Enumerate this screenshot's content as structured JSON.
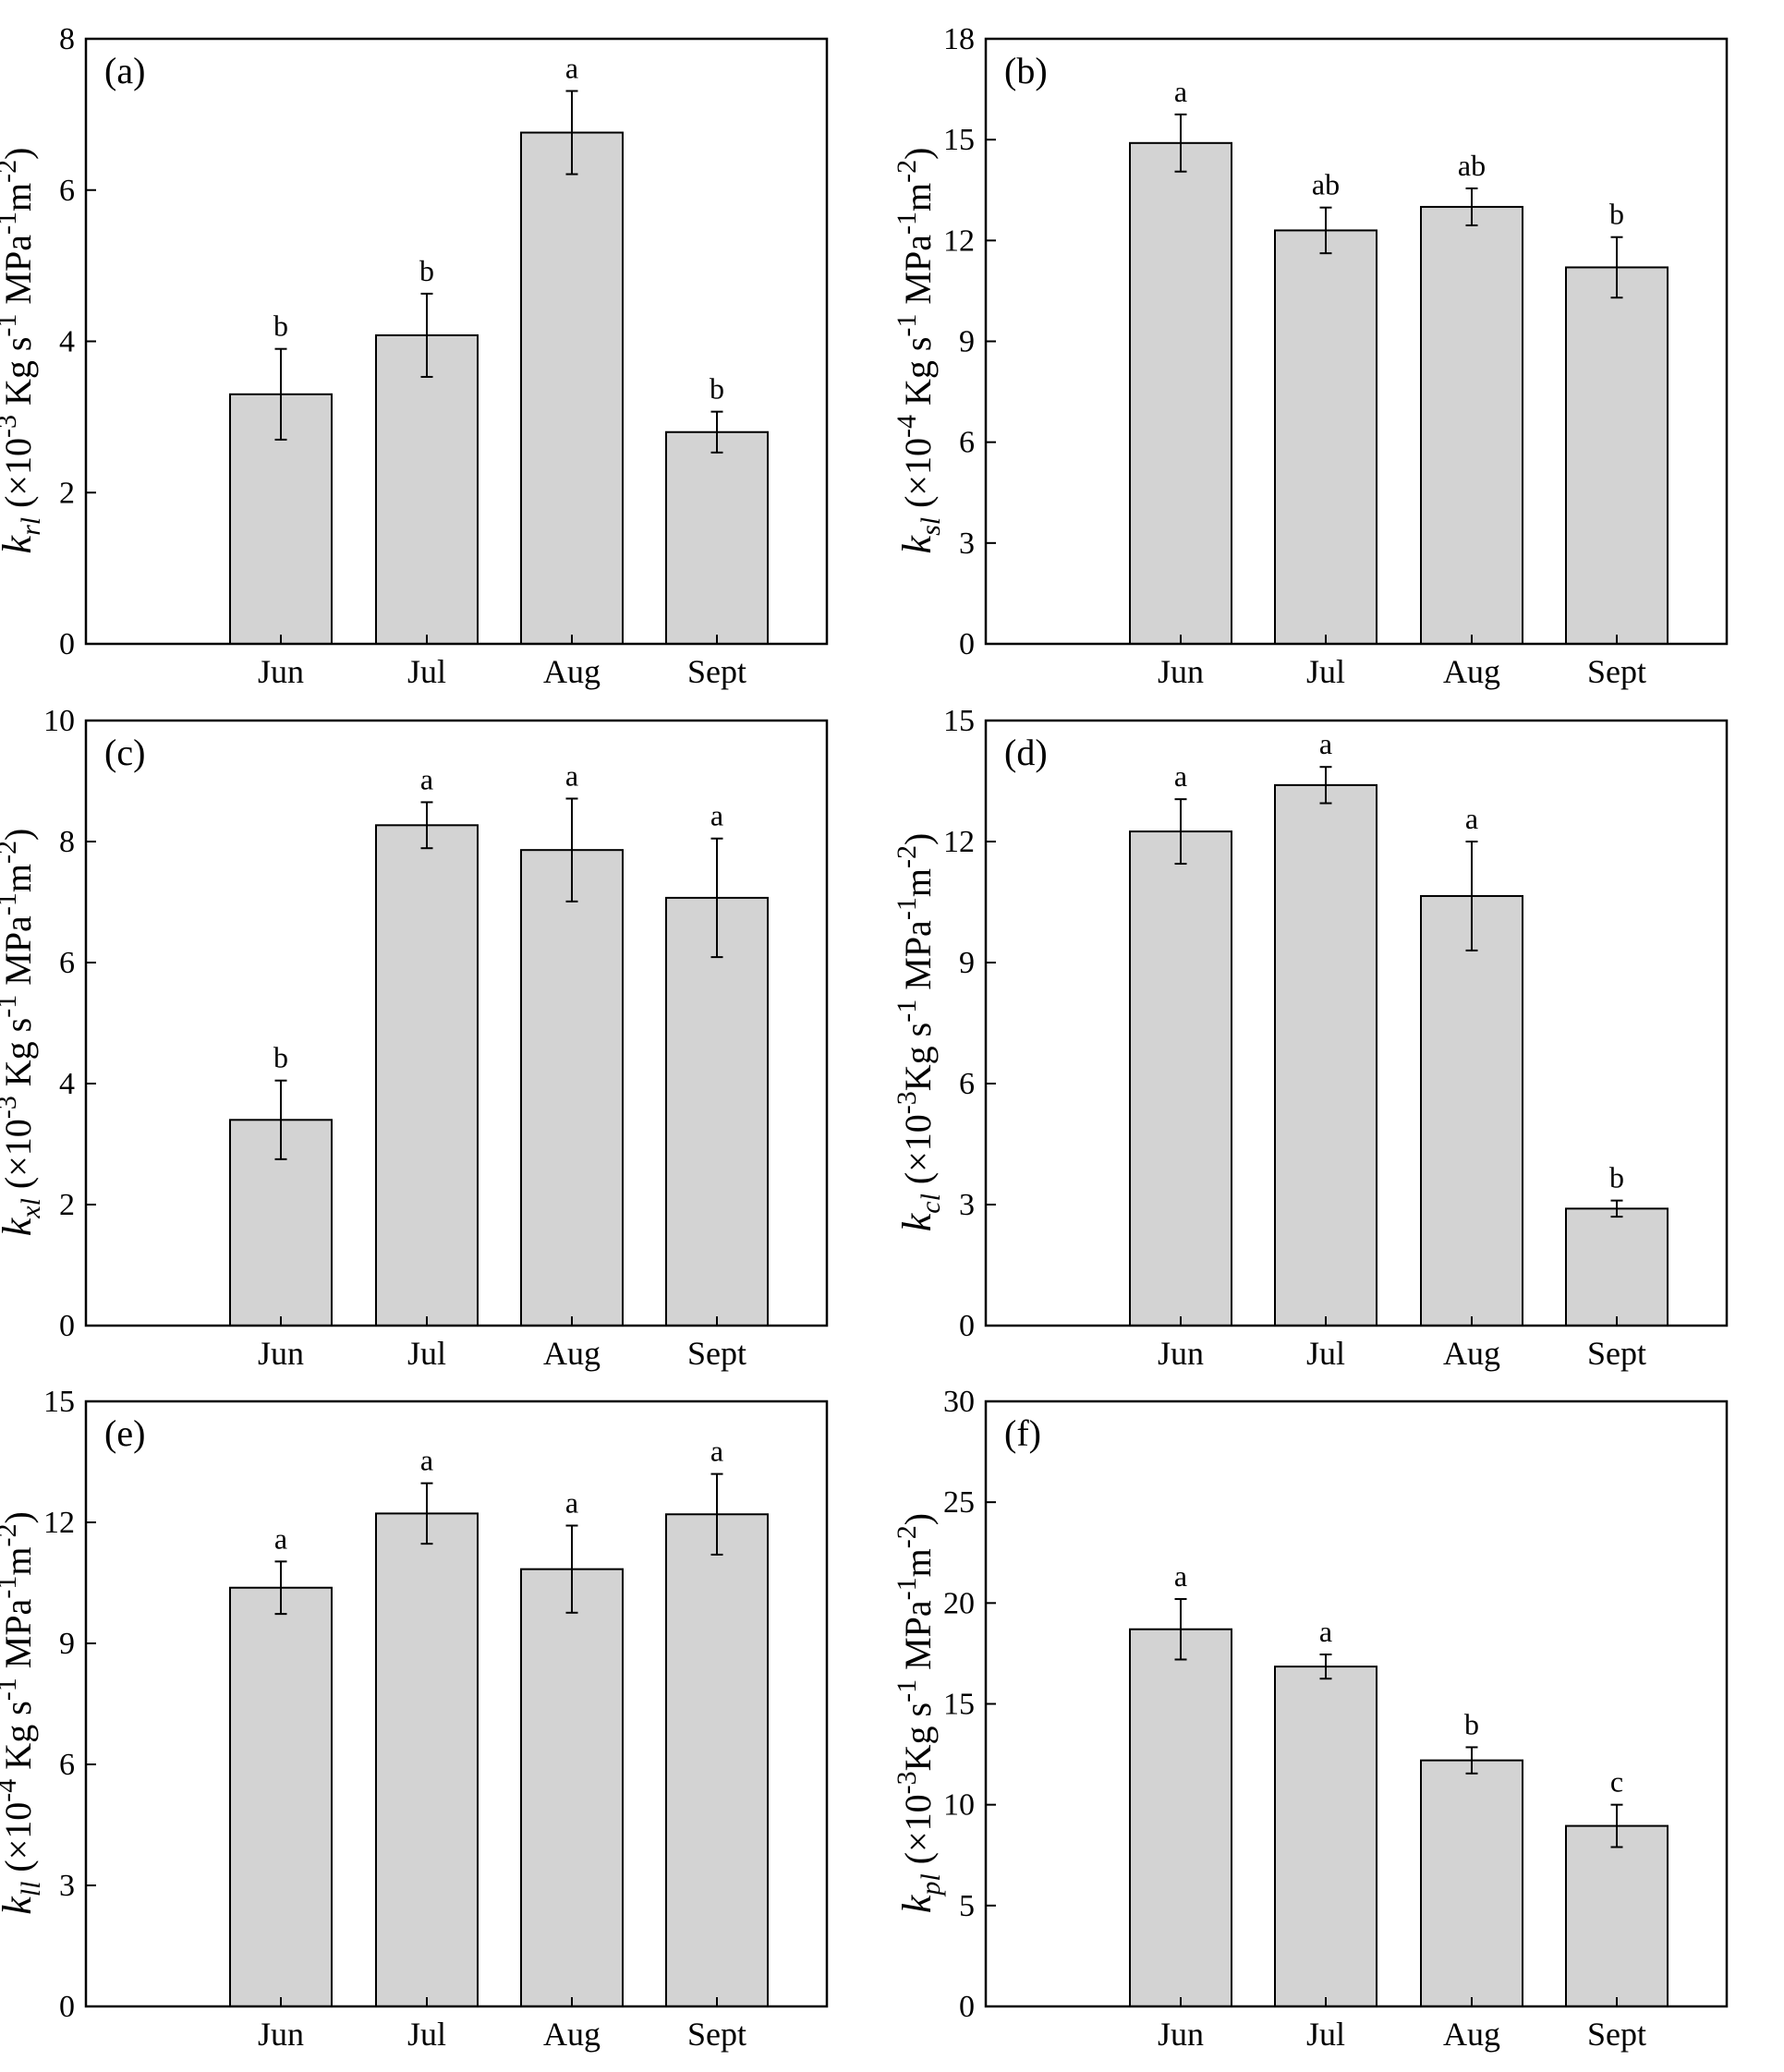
{
  "figure": {
    "panels": [
      {
        "label": "(a)",
        "ylabel": {
          "symbol": "k",
          "subscript": "rl",
          "prefix": " (×10",
          "exponent": "-3",
          "unit1": " Kg s",
          "exp1": "-1",
          "unit2": " MPa",
          "exp2": "-1",
          "unit3": "m",
          "exp3": "-2",
          "close": ")"
        },
        "chart_data": {
          "type": "bar",
          "categories": [
            "Jun",
            "Jul",
            "Aug",
            "Sept"
          ],
          "values": [
            3.3,
            4.08,
            6.76,
            2.8
          ],
          "errors": [
            0.6,
            0.55,
            0.55,
            0.27
          ],
          "letters": [
            "b",
            "b",
            "a",
            "b"
          ],
          "ylim": [
            0,
            8
          ],
          "yticks": [
            0,
            2,
            4,
            6,
            8
          ]
        }
      },
      {
        "label": "(b)",
        "ylabel": {
          "symbol": "k",
          "subscript": "sl",
          "prefix": " (×10",
          "exponent": "-4",
          "unit1": " Kg s",
          "exp1": "-1",
          "unit2": " MPa",
          "exp2": "-1",
          "unit3": "m",
          "exp3": "-2",
          "close": ")"
        },
        "chart_data": {
          "type": "bar",
          "categories": [
            "Jun",
            "Jul",
            "Aug",
            "Sept"
          ],
          "values": [
            14.9,
            12.3,
            13.0,
            11.2
          ],
          "errors": [
            0.85,
            0.68,
            0.55,
            0.9
          ],
          "letters": [
            "a",
            "ab",
            "ab",
            "b"
          ],
          "ylim": [
            0,
            18
          ],
          "yticks": [
            0,
            3,
            6,
            9,
            12,
            15,
            18
          ]
        }
      },
      {
        "label": "(c)",
        "ylabel": {
          "symbol": "k",
          "subscript": "xl",
          "prefix": " (×10",
          "exponent": "-3",
          "unit1": " Kg s",
          "exp1": "-1",
          "unit2": " MPa",
          "exp2": "-1",
          "unit3": "m",
          "exp3": "-2",
          "close": ")"
        },
        "chart_data": {
          "type": "bar",
          "categories": [
            "Jun",
            "Jul",
            "Aug",
            "Sept"
          ],
          "values": [
            3.4,
            8.27,
            7.86,
            7.07
          ],
          "errors": [
            0.65,
            0.38,
            0.85,
            0.98
          ],
          "letters": [
            "b",
            "a",
            "a",
            "a"
          ],
          "ylim": [
            0,
            10
          ],
          "yticks": [
            0,
            2,
            4,
            6,
            8,
            10
          ]
        }
      },
      {
        "label": "(d)",
        "ylabel": {
          "symbol": "k",
          "subscript": "cl",
          "prefix": " (×10",
          "exponent": "-3",
          "unit1": "Kg s",
          "exp1": "-1",
          "unit2": " MPa",
          "exp2": "-1",
          "unit3": "m",
          "exp3": "-2",
          "close": ")"
        },
        "chart_data": {
          "type": "bar",
          "categories": [
            "Jun",
            "Jul",
            "Aug",
            "Sept"
          ],
          "values": [
            12.25,
            13.4,
            10.65,
            2.9
          ],
          "errors": [
            0.8,
            0.45,
            1.35,
            0.2
          ],
          "letters": [
            "a",
            "a",
            "a",
            "b"
          ],
          "ylim": [
            0,
            15
          ],
          "yticks": [
            0,
            3,
            6,
            9,
            12,
            15
          ]
        }
      },
      {
        "label": "(e)",
        "ylabel": {
          "symbol": "k",
          "subscript": "ll",
          "prefix": " (×10",
          "exponent": "-4",
          "unit1": " Kg s",
          "exp1": "-1",
          "unit2": " MPa",
          "exp2": "-1",
          "unit3": "m",
          "exp3": "-2",
          "close": ")"
        },
        "chart_data": {
          "type": "bar",
          "categories": [
            "Jun",
            "Jul",
            "Aug",
            "Sept"
          ],
          "values": [
            10.38,
            12.22,
            10.84,
            12.2
          ],
          "errors": [
            0.65,
            0.75,
            1.08,
            1.0
          ],
          "letters": [
            "a",
            "a",
            "a",
            "a"
          ],
          "ylim": [
            0,
            15
          ],
          "yticks": [
            0,
            3,
            6,
            9,
            12,
            15
          ]
        }
      },
      {
        "label": "(f)",
        "ylabel": {
          "symbol": "k",
          "subscript": "pl",
          "prefix": " (×10",
          "exponent": "-3",
          "unit1": "Kg s",
          "exp1": "-1",
          "unit2": " MPa",
          "exp2": "-1",
          "unit3": "m",
          "exp3": "-2",
          "close": ")"
        },
        "chart_data": {
          "type": "bar",
          "categories": [
            "Jun",
            "Jul",
            "Aug",
            "Sept"
          ],
          "values": [
            18.7,
            16.85,
            12.2,
            8.95
          ],
          "errors": [
            1.5,
            0.6,
            0.65,
            1.05
          ],
          "letters": [
            "a",
            "a",
            "b",
            "c"
          ],
          "ylim": [
            0,
            30
          ],
          "yticks": [
            0,
            5,
            10,
            15,
            20,
            25,
            30
          ]
        }
      }
    ],
    "colors": {
      "bar_fill": "#d3d3d3",
      "stroke": "#000000",
      "background": "#ffffff"
    }
  }
}
